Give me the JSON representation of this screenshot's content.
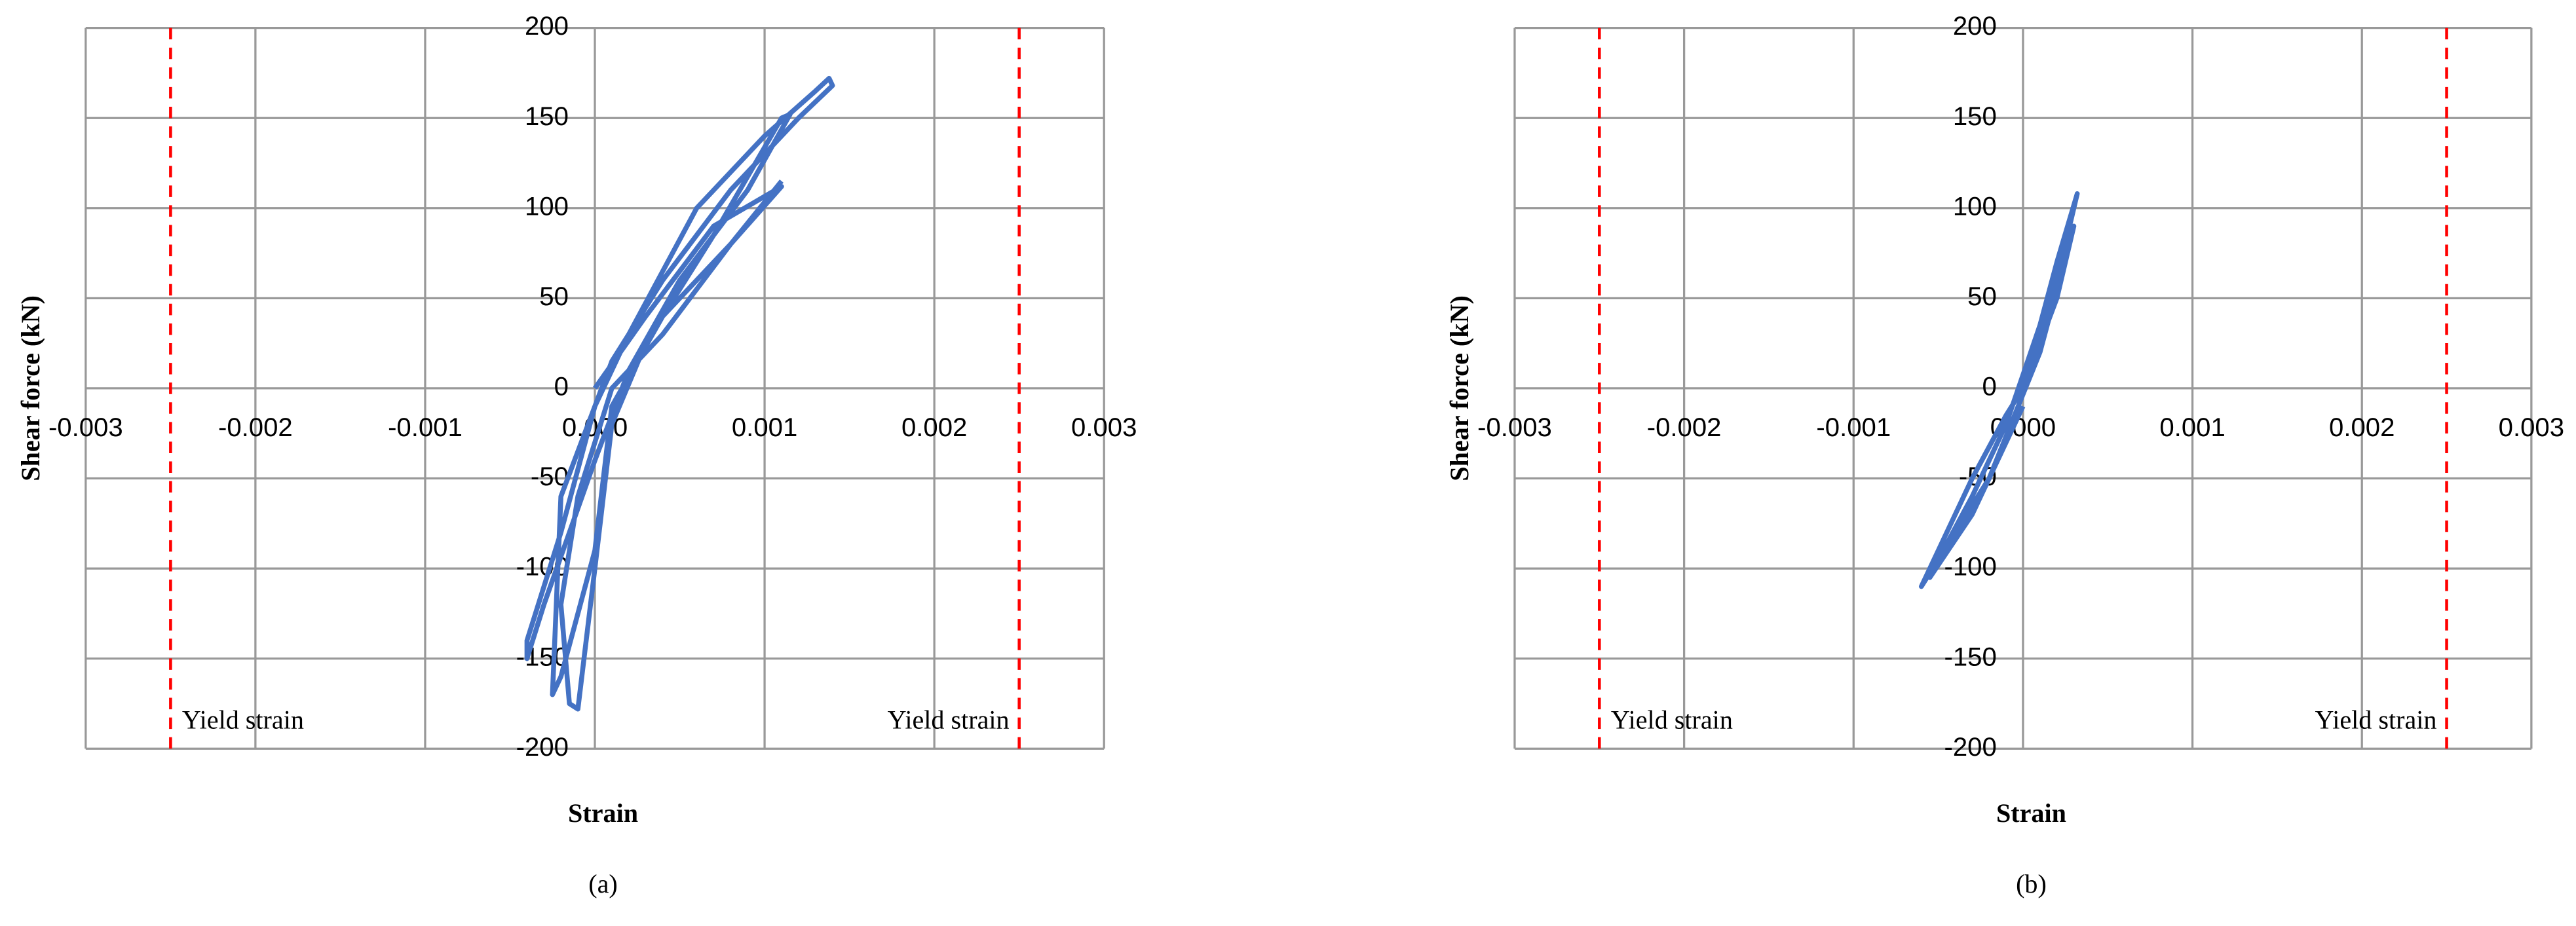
{
  "chart_data": [
    {
      "type": "line",
      "panel_label": "(a)",
      "x_label": "Strain",
      "y_label": "Shear force (kN)",
      "xlim": [
        -0.003,
        0.003
      ],
      "ylim": [
        -200,
        200
      ],
      "xticks": [
        -0.003,
        -0.002,
        -0.001,
        {
          "value": 0,
          "label": "0.000"
        },
        0.001,
        0.002,
        0.003
      ],
      "yticks": [
        -200,
        -150,
        -100,
        -50,
        0,
        50,
        100,
        150,
        200
      ],
      "grid": true,
      "annotations": [
        {
          "text": "Yield strain",
          "x": -0.0025,
          "color": "#ff0000"
        },
        {
          "text": "Yield strain",
          "x": 0.0025,
          "color": "#ff0000"
        }
      ],
      "x": [
        0,
        0.0003,
        0.0007,
        0.0011,
        0.0008,
        0.0004,
        0.0001,
        -0.0001,
        -0.0002,
        -0.00015,
        -0.0001,
        0,
        0.0001,
        0.0003,
        0.0007,
        0.0011,
        0.00115,
        0.0009,
        0.0005,
        0.0002,
        0,
        -0.0003,
        -0.0004,
        -0.0004,
        -0.0002,
        0,
        0.0002,
        0.0006,
        0.001,
        0.0013,
        0.00138,
        0.0014,
        0.0012,
        0.0008,
        0.0004,
        0.0001,
        -0.0002,
        -0.00025,
        -0.0002,
        0,
        0.0001,
        0.0004,
        0.0008,
        0.0011
      ],
      "series": [
        {
          "color": "#4472c4",
          "values": [
            0,
            40,
            90,
            112,
            80,
            30,
            0,
            -60,
            -120,
            -175,
            -178,
            -100,
            -20,
            25,
            85,
            150,
            152,
            110,
            60,
            10,
            -40,
            -120,
            -150,
            -140,
            -80,
            -10,
            30,
            100,
            140,
            165,
            172,
            168,
            150,
            110,
            60,
            15,
            -60,
            -170,
            -160,
            -90,
            -10,
            40,
            80,
            115
          ]
        }
      ]
    },
    {
      "type": "line",
      "panel_label": "(b)",
      "x_label": "Strain",
      "y_label": "Shear force (kN)",
      "xlim": [
        -0.003,
        0.003
      ],
      "ylim": [
        -200,
        200
      ],
      "xticks": [
        -0.003,
        -0.002,
        -0.001,
        {
          "value": 0,
          "label": "0.000"
        },
        0.001,
        0.002,
        0.003
      ],
      "yticks": [
        -200,
        -150,
        -100,
        -50,
        0,
        50,
        100,
        150,
        200
      ],
      "grid": true,
      "annotations": [
        {
          "text": "Yield strain",
          "x": -0.0025,
          "color": "#ff0000"
        },
        {
          "text": "Yield strain",
          "x": 0.0025,
          "color": "#ff0000"
        }
      ],
      "x": [
        0,
        0.0001,
        0.0002,
        0.0003,
        0.00032,
        0.0002,
        0.0001,
        -0.0001,
        -0.0003,
        -0.0005,
        -0.0006,
        -0.0005,
        -0.0003,
        -0.0001,
        0,
        0.0002,
        0.0003,
        0.0001,
        -0.0002,
        -0.0004,
        -0.00055,
        -0.0003,
        0
      ],
      "series": [
        {
          "color": "#4472c4",
          "values": [
            0,
            30,
            60,
            100,
            108,
            70,
            35,
            -20,
            -60,
            -95,
            -110,
            -90,
            -50,
            -15,
            0,
            50,
            90,
            20,
            -50,
            -80,
            -105,
            -70,
            -10
          ]
        }
      ]
    }
  ]
}
